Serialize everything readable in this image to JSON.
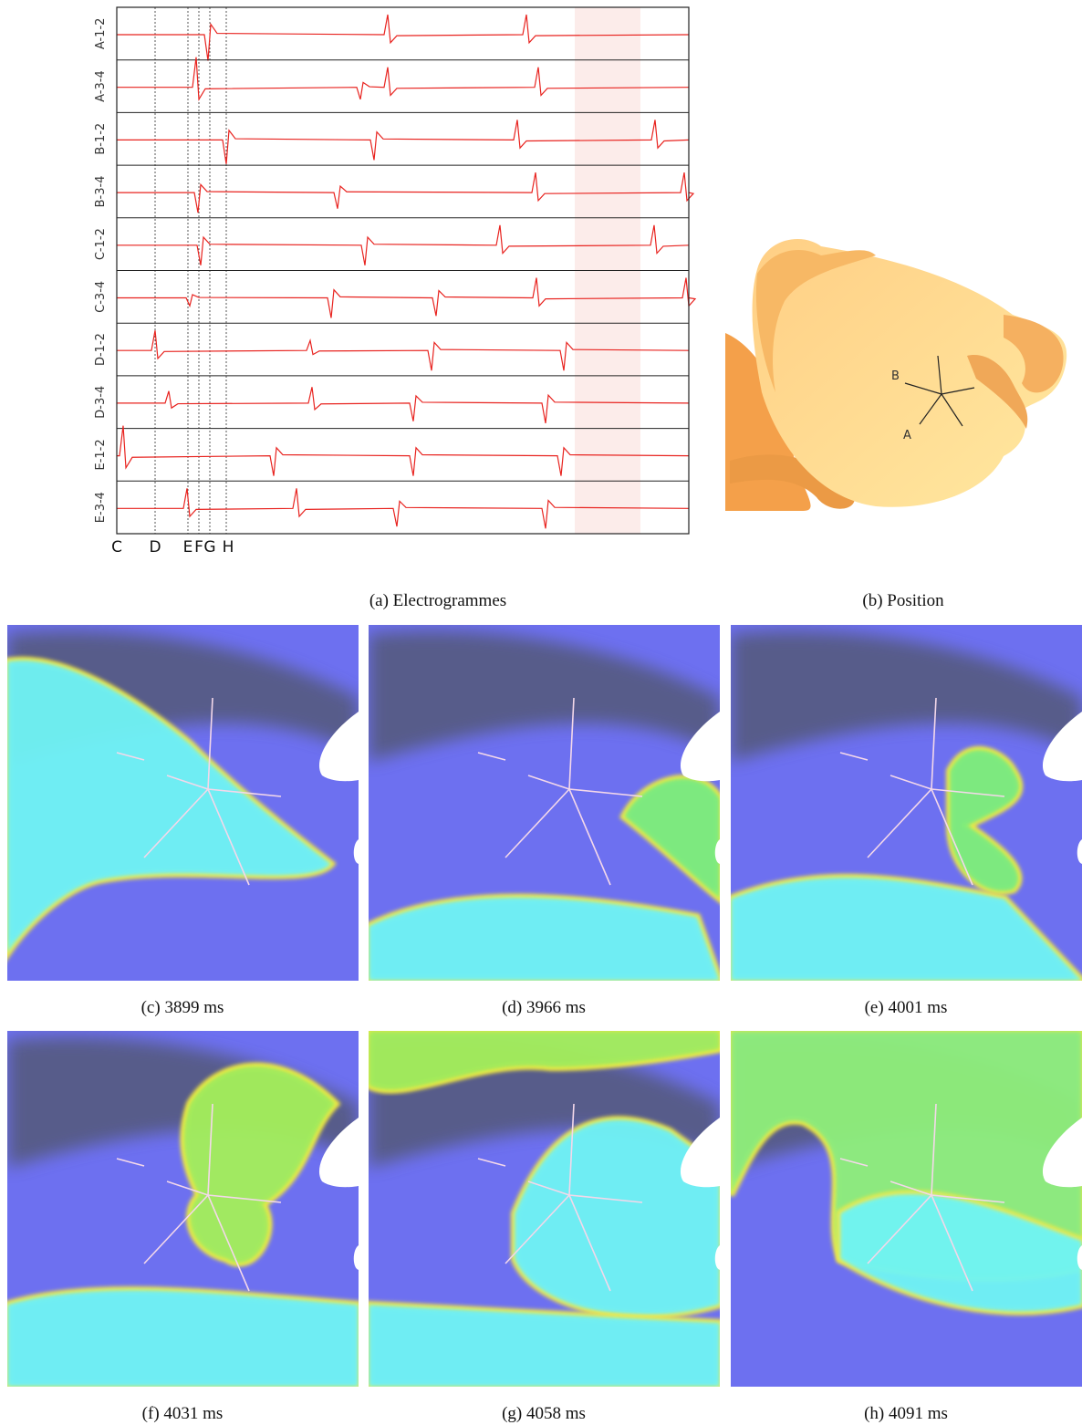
{
  "electrogrammes": {
    "channels": [
      "A-1-2",
      "A-3-4",
      "B-1-2",
      "B-3-4",
      "C-1-2",
      "C-3-4",
      "D-1-2",
      "D-3-4",
      "E-1-2",
      "E-3-4"
    ],
    "markers": [
      "C",
      "D",
      "E",
      "F",
      "G",
      "H"
    ],
    "caption": "(a) Electrogrammes"
  },
  "position": {
    "labels": [
      "A",
      "B"
    ],
    "caption": "(b) Position"
  },
  "snapshots": [
    {
      "caption": "(c) 3899 ms"
    },
    {
      "caption": "(d) 3966 ms"
    },
    {
      "caption": "(e) 4001 ms"
    },
    {
      "caption": "(f) 4031 ms"
    },
    {
      "caption": "(g) 4058 ms"
    },
    {
      "caption": "(h) 4091 ms"
    }
  ]
}
